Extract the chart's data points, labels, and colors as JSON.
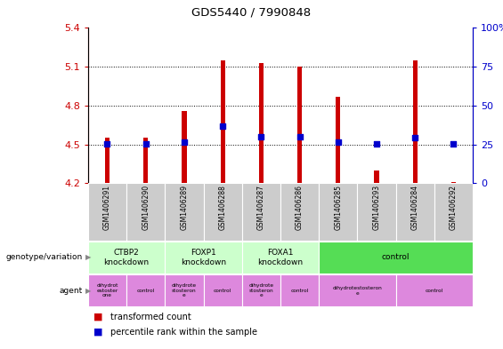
{
  "title": "GDS5440 / 7990848",
  "samples": [
    "GSM1406291",
    "GSM1406290",
    "GSM1406289",
    "GSM1406288",
    "GSM1406287",
    "GSM1406286",
    "GSM1406285",
    "GSM1406293",
    "GSM1406284",
    "GSM1406292"
  ],
  "transformed_counts": [
    4.55,
    4.55,
    4.76,
    5.15,
    5.13,
    5.1,
    4.87,
    4.3,
    5.15,
    4.21
  ],
  "percentile_values": [
    4.505,
    4.505,
    4.52,
    4.64,
    4.56,
    4.56,
    4.52,
    4.505,
    4.555,
    4.505
  ],
  "ylim": [
    4.2,
    5.4
  ],
  "y2lim": [
    0,
    100
  ],
  "yticks": [
    4.2,
    4.5,
    4.8,
    5.1,
    5.4
  ],
  "y2ticks": [
    0,
    25,
    50,
    75,
    100
  ],
  "dotted_lines": [
    4.5,
    4.8,
    5.1
  ],
  "bar_color": "#cc0000",
  "dot_color": "#0000cc",
  "bar_width": 0.12,
  "genotype_groups": [
    {
      "label": "CTBP2\nknockdown",
      "start": 0,
      "end": 2,
      "color": "#ccffcc"
    },
    {
      "label": "FOXP1\nknockdown",
      "start": 2,
      "end": 4,
      "color": "#ccffcc"
    },
    {
      "label": "FOXA1\nknockdown",
      "start": 4,
      "end": 6,
      "color": "#ccffcc"
    },
    {
      "label": "control",
      "start": 6,
      "end": 10,
      "color": "#55dd55"
    }
  ],
  "agent_groups": [
    {
      "label": "dihydrot\nestoster\none",
      "start": 0,
      "end": 1,
      "color": "#dd88dd"
    },
    {
      "label": "control",
      "start": 1,
      "end": 2,
      "color": "#dd88dd"
    },
    {
      "label": "dihydrote\nstosteron\ne",
      "start": 2,
      "end": 3,
      "color": "#dd88dd"
    },
    {
      "label": "control",
      "start": 3,
      "end": 4,
      "color": "#dd88dd"
    },
    {
      "label": "dihydrote\nstosteron\ne",
      "start": 4,
      "end": 5,
      "color": "#dd88dd"
    },
    {
      "label": "control",
      "start": 5,
      "end": 6,
      "color": "#dd88dd"
    },
    {
      "label": "dihydrotestosteron\ne",
      "start": 6,
      "end": 8,
      "color": "#dd88dd"
    },
    {
      "label": "control",
      "start": 8,
      "end": 10,
      "color": "#dd88dd"
    }
  ],
  "ylabel_left_color": "#cc0000",
  "ylabel_right_color": "#0000cc",
  "plot_bg_color": "#ffffff",
  "sample_bg_color": "#cccccc",
  "fig_width": 5.65,
  "fig_height": 3.93,
  "fig_dpi": 100
}
